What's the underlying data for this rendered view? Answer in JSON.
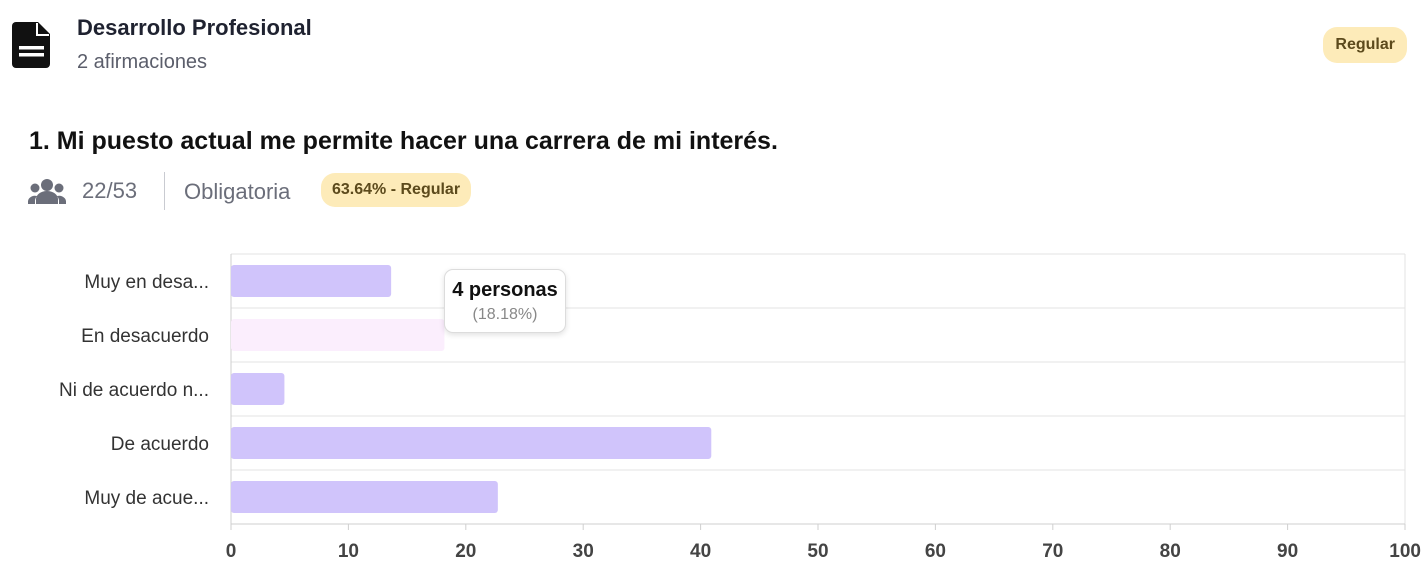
{
  "section": {
    "title": "Desarrollo Profesional",
    "subtitle": "2 afirmaciones",
    "badge": "Regular",
    "icon": "document-icon"
  },
  "question": {
    "title": "1. Mi puesto actual me permite hacer una carrera de mi interés.",
    "respondents": "22/53",
    "requirement": "Obligatoria",
    "score_badge": "63.64% - Regular",
    "icon": "users-icon"
  },
  "colors": {
    "bar": "#d0c4fb",
    "bar_hover": "#fbeefd",
    "badge_bg": "#fdebb9",
    "badge_text": "#5c4a1c",
    "grid": "#e3e3e3"
  },
  "tooltip": {
    "main": "4 personas",
    "sub": "(18.18%)"
  },
  "chart_data": {
    "type": "bar",
    "orientation": "horizontal",
    "categories": [
      "Muy en desa...",
      "En desacuerdo",
      "Ni de acuerdo n...",
      "De acuerdo",
      "Muy de acue..."
    ],
    "values": [
      13.64,
      18.18,
      4.55,
      40.91,
      22.73
    ],
    "highlighted_index": 1,
    "xlim": [
      0,
      100
    ],
    "xticks": [
      0,
      10,
      20,
      30,
      40,
      50,
      60,
      70,
      80,
      90,
      100
    ],
    "grid": true
  }
}
